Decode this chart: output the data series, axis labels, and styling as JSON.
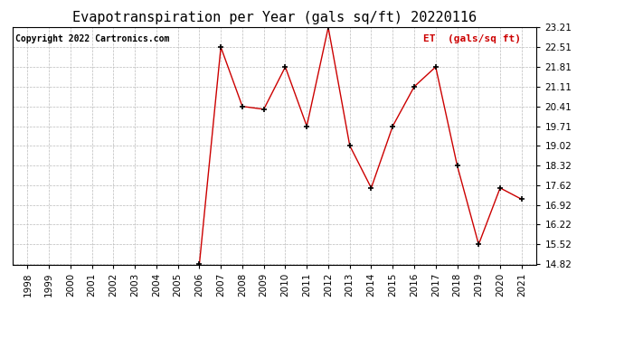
{
  "title": "Evapotranspiration per Year (gals sq/ft) 20220116",
  "copyright": "Copyright 2022 Cartronics.com",
  "legend_label": "ET  (gals/sq ft)",
  "years": [
    1998,
    1999,
    2000,
    2001,
    2002,
    2003,
    2004,
    2005,
    2006,
    2007,
    2008,
    2009,
    2010,
    2011,
    2012,
    2013,
    2014,
    2015,
    2016,
    2017,
    2018,
    2019,
    2020,
    2021
  ],
  "values": [
    null,
    null,
    null,
    null,
    null,
    null,
    null,
    null,
    14.82,
    22.51,
    20.41,
    20.31,
    21.81,
    19.71,
    23.21,
    19.02,
    17.52,
    19.71,
    21.11,
    21.81,
    18.32,
    15.52,
    17.52,
    17.12
  ],
  "line_color": "#cc0000",
  "marker_color": "#000000",
  "grid_color": "#bbbbbb",
  "background_color": "#ffffff",
  "ylim_min": 14.82,
  "ylim_max": 23.21,
  "yticks": [
    14.82,
    15.52,
    16.22,
    16.92,
    17.62,
    18.32,
    19.02,
    19.71,
    20.41,
    21.11,
    21.81,
    22.51,
    23.21
  ],
  "title_fontsize": 11,
  "copyright_fontsize": 7,
  "legend_fontsize": 8,
  "tick_fontsize": 7.5
}
